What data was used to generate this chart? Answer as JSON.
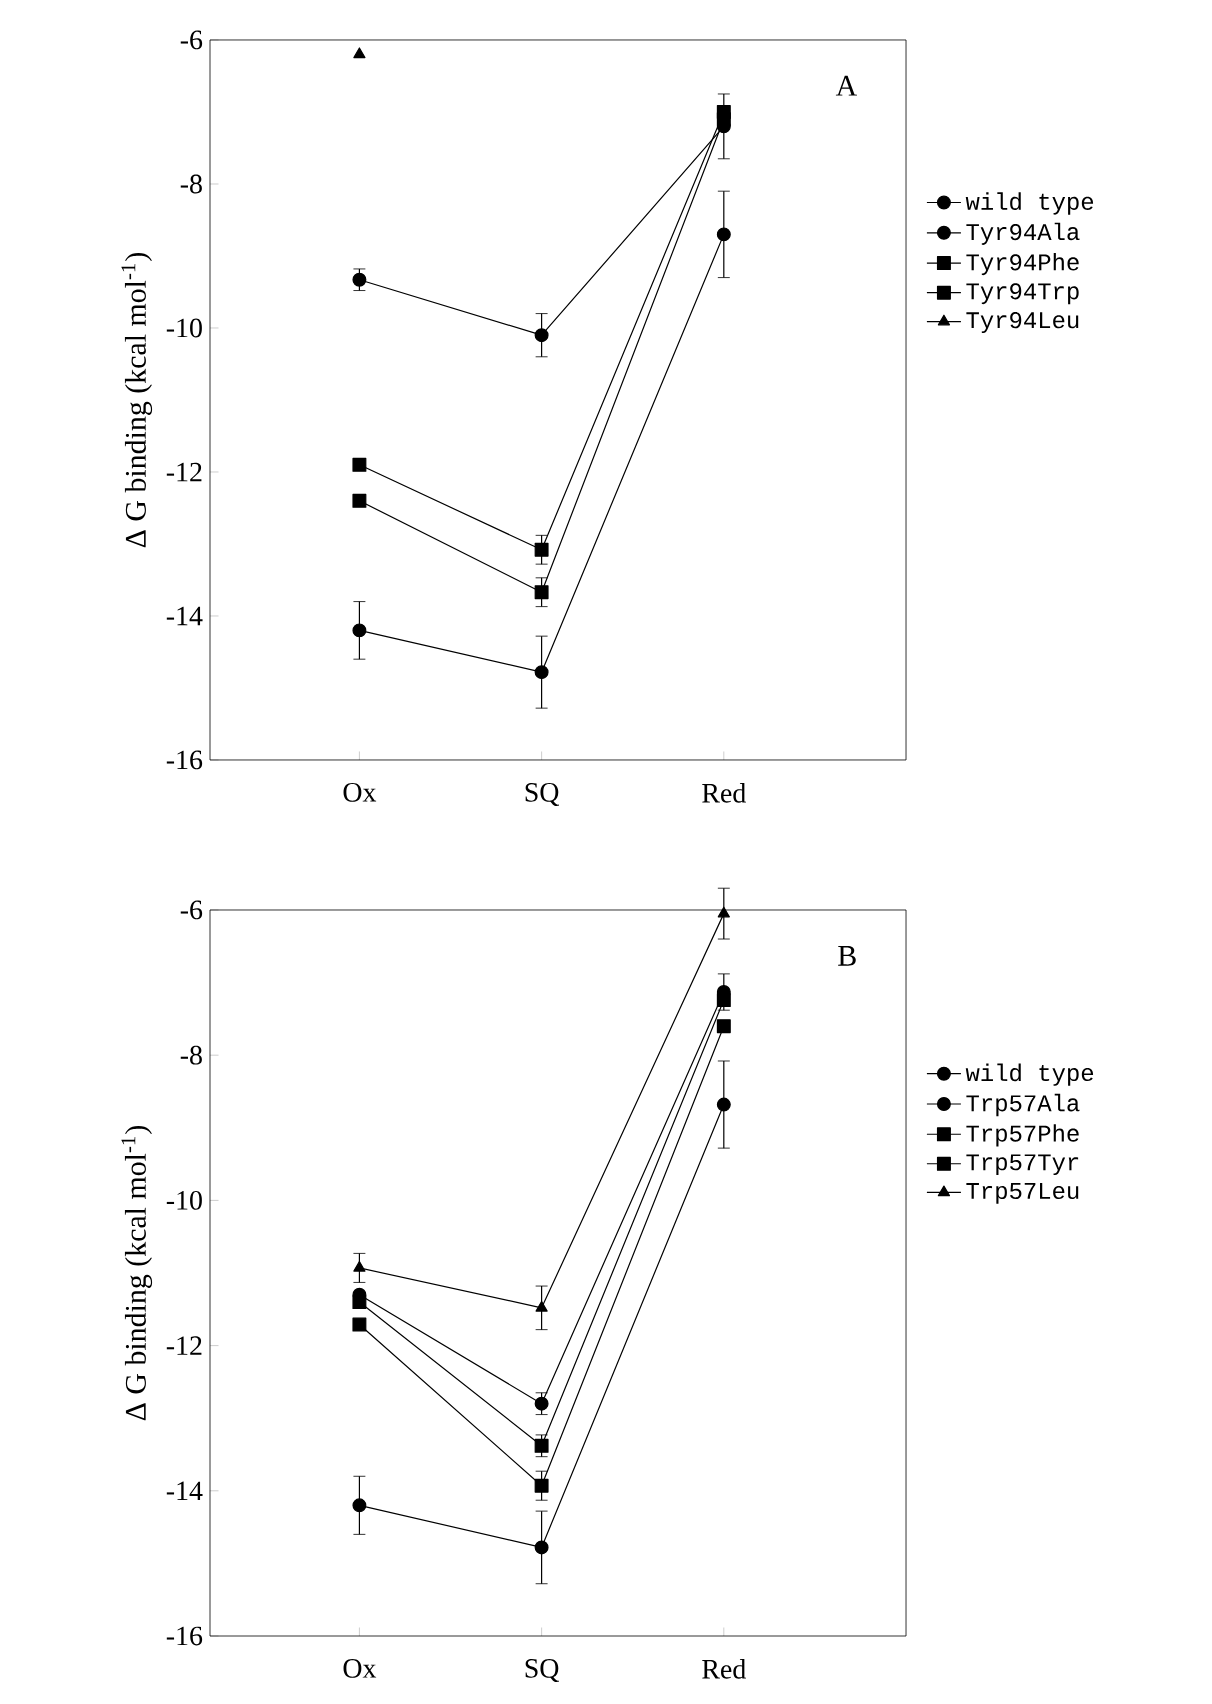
{
  "chart_data": [
    {
      "type": "line",
      "categories": [
        "Ox",
        "SQ",
        "Red"
      ],
      "ylabel": "Δ G binding (kcal mol$^{-1}$)",
      "ylim": [
        -16,
        -6
      ],
      "yticks": [
        -16,
        -14,
        -12,
        -10,
        -8,
        -6
      ],
      "annotations": [
        "A"
      ],
      "legend": "right",
      "grid": false,
      "series": [
        {
          "name": "wild type",
          "color": "#000000",
          "marker": "circle",
          "values": [
            -14.2,
            -14.78,
            -8.7
          ],
          "errors": [
            0.4,
            0.5,
            0.6
          ]
        },
        {
          "name": "Tyr94Ala",
          "color": "#000000",
          "marker": "circle",
          "values": [
            -9.33,
            -10.1,
            -7.2
          ],
          "errors": [
            0.15,
            0.3,
            0.45
          ]
        },
        {
          "name": "Tyr94Phe",
          "color": "#000000",
          "marker": "square",
          "values": [
            -11.9,
            -13.08,
            -7.0
          ],
          "errors": [
            null,
            0.2,
            null
          ]
        },
        {
          "name": "Tyr94Trp",
          "color": "#000000",
          "marker": "square",
          "values": [
            -12.4,
            -13.67,
            -7.1
          ],
          "errors": [
            null,
            0.2,
            null
          ]
        },
        {
          "name": "Tyr94Leu",
          "color": "#000000",
          "marker": "triangle",
          "values": [
            -6.2,
            null,
            null
          ]
        }
      ]
    },
    {
      "type": "line",
      "categories": [
        "Ox",
        "SQ",
        "Red"
      ],
      "ylabel": "Δ G binding (kcal mol$^{-1}$)",
      "ylim": [
        -16,
        -6
      ],
      "yticks": [
        -16,
        -14,
        -12,
        -10,
        -8,
        -6
      ],
      "annotations": [
        "B"
      ],
      "legend": "right",
      "grid": false,
      "series": [
        {
          "name": "wild type",
          "color": "#000000",
          "marker": "circle",
          "values": [
            -14.2,
            -14.78,
            -8.68
          ],
          "errors": [
            0.4,
            0.5,
            0.6
          ]
        },
        {
          "name": "Trp57Ala",
          "color": "#000000",
          "marker": "circle",
          "values": [
            -11.3,
            -12.8,
            -7.13
          ],
          "errors": [
            null,
            0.15,
            0.25
          ]
        },
        {
          "name": "Trp57Phe",
          "color": "#000000",
          "marker": "square",
          "values": [
            -11.4,
            -13.38,
            -7.24
          ],
          "errors": [
            null,
            0.15,
            null
          ]
        },
        {
          "name": "Trp57Tyr",
          "color": "#000000",
          "marker": "square",
          "values": [
            -11.71,
            -13.93,
            -7.6
          ],
          "errors": [
            null,
            0.2,
            null
          ]
        },
        {
          "name": "Trp57Leu",
          "color": "#000000",
          "marker": "triangle",
          "values": [
            -10.93,
            -11.48,
            -6.05
          ],
          "errors": [
            0.2,
            0.3,
            0.35
          ]
        }
      ]
    }
  ]
}
